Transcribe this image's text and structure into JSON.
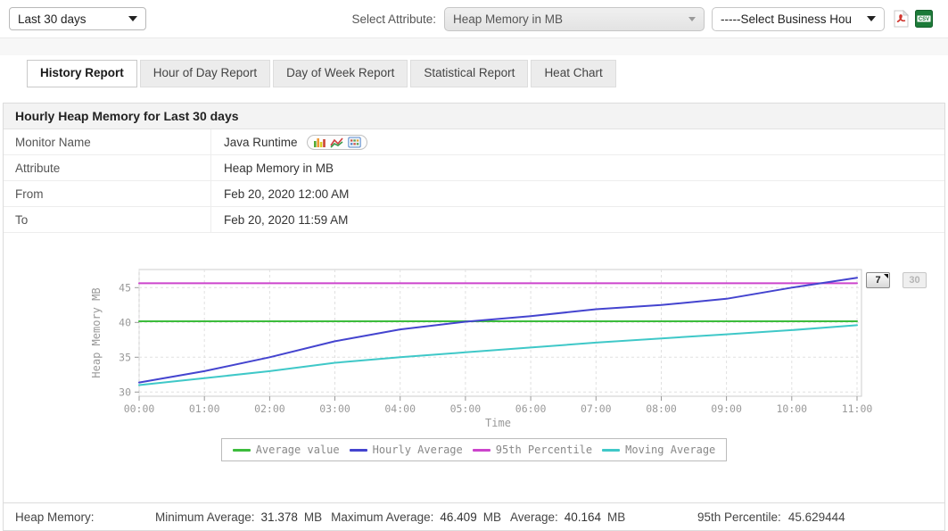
{
  "toolbar": {
    "period_select": "Last 30 days",
    "select_attribute_label": "Select Attribute:",
    "attribute_select": "Heap Memory in MB",
    "business_hours_select": "-----Select Business Hou",
    "csv_icon_text": "CSV",
    "icons": [
      "pdf-export-icon",
      "csv-export-icon"
    ]
  },
  "tabs": [
    {
      "label": "History Report",
      "active": true
    },
    {
      "label": "Hour of Day Report",
      "active": false
    },
    {
      "label": "Day of Week Report",
      "active": false
    },
    {
      "label": "Statistical Report",
      "active": false
    },
    {
      "label": "Heat Chart",
      "active": false
    }
  ],
  "card": {
    "title": "Hourly Heap Memory for Last 30 days",
    "rows": [
      {
        "label": "Monitor Name",
        "value": "Java Runtime"
      },
      {
        "label": "Attribute",
        "value": "Heap Memory in MB"
      },
      {
        "label": "From",
        "value": "Feb 20, 2020 12:00 AM"
      },
      {
        "label": "To",
        "value": "Feb 20, 2020 11:59 AM"
      }
    ],
    "monitor_icons": [
      "bar-chart-icon",
      "line-chart-icon",
      "data-grid-icon"
    ]
  },
  "chart_controls": {
    "seven_button": "7",
    "thirty_button": "30"
  },
  "chart_data": {
    "type": "line",
    "title": "",
    "xlabel": "Time",
    "ylabel": "Heap Memory MB",
    "x": [
      "00:00",
      "01:00",
      "02:00",
      "03:00",
      "04:00",
      "05:00",
      "06:00",
      "07:00",
      "08:00",
      "09:00",
      "10:00",
      "11:00"
    ],
    "ylim": [
      29.4,
      47.6
    ],
    "yticks": [
      30,
      35,
      40,
      45
    ],
    "grid": "dashed",
    "legend_position": "bottom",
    "draw_order": [
      2,
      0,
      3,
      1
    ],
    "series": [
      {
        "name": "Average value",
        "color": "#3cbc3c",
        "values": [
          40.164,
          40.164,
          40.164,
          40.164,
          40.164,
          40.164,
          40.164,
          40.164,
          40.164,
          40.164,
          40.164,
          40.164
        ]
      },
      {
        "name": "Hourly Average",
        "color": "#4444cf",
        "values": [
          31.378,
          33.0,
          35.0,
          37.3,
          39.0,
          40.1,
          40.9,
          41.9,
          42.5,
          43.4,
          45.0,
          46.409
        ]
      },
      {
        "name": "95th Percentile",
        "color": "#cc44cc",
        "values": [
          45.629444,
          45.629444,
          45.629444,
          45.629444,
          45.629444,
          45.629444,
          45.629444,
          45.629444,
          45.629444,
          45.629444,
          45.629444,
          45.629444
        ]
      },
      {
        "name": "Moving Average",
        "color": "#3fc8c8",
        "values": [
          31.0,
          32.0,
          33.0,
          34.2,
          35.0,
          35.7,
          36.4,
          37.1,
          37.7,
          38.3,
          38.9,
          39.6
        ]
      }
    ]
  },
  "footer": {
    "title": "Heap Memory:",
    "stats": [
      {
        "label": "Minimum Average:",
        "value": "31.378",
        "unit": "MB"
      },
      {
        "label": "Maximum Average:",
        "value": "46.409",
        "unit": "MB"
      },
      {
        "label": "Average:",
        "value": "40.164",
        "unit": "MB"
      }
    ],
    "percentile": {
      "label": "95th Percentile:",
      "value": "45.629444"
    }
  }
}
